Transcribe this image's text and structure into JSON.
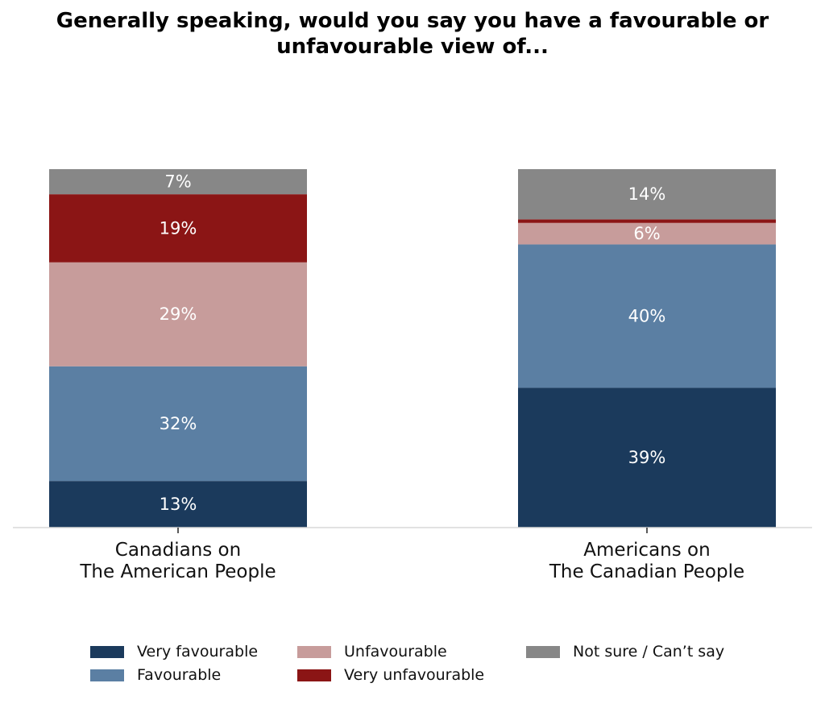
{
  "title": "Generally speaking, would you say you have a favourable or\nunfavourable view of...",
  "chart_data": {
    "type": "bar",
    "stacked": true,
    "orientation": "vertical",
    "categories": [
      "Canadians on\nThe American People",
      "Americans on\nThe Canadian People"
    ],
    "series": [
      {
        "name": "Very favourable",
        "color": "#1b3a5c",
        "values": [
          13,
          39
        ],
        "labels": [
          "13%",
          "39%"
        ]
      },
      {
        "name": "Favourable",
        "color": "#5b7fa3",
        "values": [
          32,
          40
        ],
        "labels": [
          "32%",
          "40%"
        ]
      },
      {
        "name": "Unfavourable",
        "color": "#c79c9b",
        "values": [
          29,
          6
        ],
        "labels": [
          "29%",
          "6%"
        ]
      },
      {
        "name": "Very unfavourable",
        "color": "#8b1515",
        "values": [
          19,
          1
        ],
        "labels": [
          "19%",
          ""
        ]
      },
      {
        "name": "Not sure / Can’t say",
        "color": "#878787",
        "values": [
          7,
          14
        ],
        "labels": [
          "7%",
          "14%"
        ]
      }
    ],
    "ylim": [
      0,
      100
    ],
    "xlabel": "",
    "ylabel": "",
    "grid": false,
    "legend_position": "bottom"
  }
}
